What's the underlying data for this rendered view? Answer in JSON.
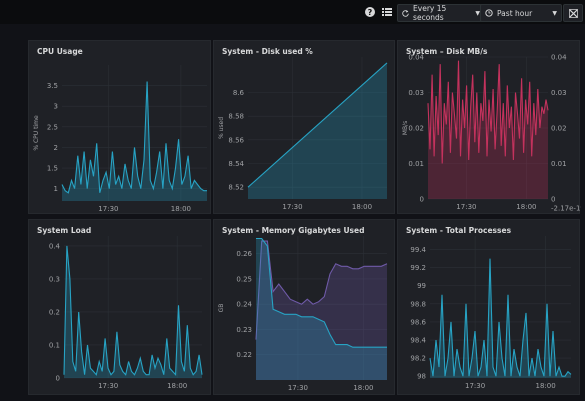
{
  "toolbar": {
    "help_icon": "?",
    "list_icon": "list-icon",
    "refresh_label": "Every 15 seconds",
    "time_range_label": "Past hour",
    "exit_icon": "exit-icon"
  },
  "panels": [
    {
      "title": "CPU Usage",
      "y_label": "% CPU time",
      "chart_data": {
        "type": "area",
        "color": "#27a3c4",
        "ylim": [
          0.7,
          4.0
        ],
        "y_ticks": [
          1,
          1.5,
          2,
          2.5,
          3,
          3.5
        ],
        "y_tick_labels": [
          "1",
          "1.5",
          "2",
          "2.5",
          "3",
          "3.5"
        ],
        "x_ticks": [
          "17:30",
          "18:00"
        ],
        "values": [
          1.1,
          0.95,
          0.9,
          1.2,
          1.0,
          1.8,
          1.1,
          1.9,
          1.0,
          1.7,
          1.3,
          2.1,
          0.9,
          1.2,
          1.4,
          1.0,
          1.9,
          1.1,
          1.3,
          1.0,
          1.6,
          1.2,
          1.0,
          2.0,
          1.3,
          1.0,
          1.7,
          3.6,
          1.2,
          1.0,
          1.4,
          1.9,
          1.0,
          2.1,
          1.2,
          1.0,
          1.5,
          2.2,
          1.1,
          1.3,
          1.8,
          1.0,
          1.2,
          1.1,
          1.0,
          0.95,
          0.95
        ]
      }
    },
    {
      "title": "System - Disk used %",
      "y_label": "% used",
      "chart_data": {
        "type": "area",
        "color": "#27a3c4",
        "ylim": [
          8.51,
          8.63
        ],
        "y_ticks": [
          8.52,
          8.54,
          8.56,
          8.58,
          8.6
        ],
        "y_tick_labels": [
          "8.52",
          "8.54",
          "8.56",
          "8.58",
          "8.6"
        ],
        "x_ticks": [
          "17:30",
          "18:00"
        ],
        "values": [
          8.52,
          8.625
        ]
      }
    },
    {
      "title": "System – Disk MB/s",
      "y_label": "MB/s",
      "right_tick_labels": [
        "0.04",
        "0.03",
        "0.02",
        "0.01",
        "0",
        "-2.17e-19"
      ],
      "chart_data": {
        "type": "area",
        "color": "#c4325d",
        "ylim": [
          0,
          0.04
        ],
        "y_ticks": [
          0,
          0.01,
          0.02,
          0.03,
          0.04
        ],
        "y_tick_labels": [
          "0",
          "0.01",
          "0.02",
          "0.03",
          "0.04"
        ],
        "x_ticks": [
          "17:30",
          "18:00"
        ],
        "values": [
          0.027,
          0.014,
          0.035,
          0.012,
          0.029,
          0.018,
          0.038,
          0.01,
          0.027,
          0.021,
          0.033,
          0.013,
          0.03,
          0.024,
          0.017,
          0.039,
          0.012,
          0.028,
          0.02,
          0.032,
          0.011,
          0.026,
          0.035,
          0.016,
          0.03,
          0.013,
          0.027,
          0.022,
          0.036,
          0.012,
          0.028,
          0.019,
          0.031,
          0.014,
          0.025,
          0.038,
          0.015,
          0.027,
          0.012,
          0.032,
          0.02,
          0.026,
          0.011,
          0.03,
          0.024,
          0.017,
          0.034,
          0.013,
          0.028,
          0.021,
          0.033,
          0.012,
          0.027,
          0.018,
          0.031,
          0.02,
          0.026,
          0.024,
          0.028,
          0.025
        ]
      }
    },
    {
      "title": "System Load",
      "chart_data": {
        "type": "area",
        "color": "#27a3c4",
        "ylim": [
          0,
          0.43
        ],
        "y_ticks": [
          0,
          0.1,
          0.2,
          0.3,
          0.4
        ],
        "y_tick_labels": [
          "0",
          "0.1",
          "0.2",
          "0.3",
          "0.4"
        ],
        "x_ticks": [
          "17:30",
          "18:00"
        ],
        "values": [
          0.01,
          0.4,
          0.3,
          0.05,
          0.02,
          0.2,
          0.08,
          0.01,
          0.1,
          0.03,
          0.02,
          0.01,
          0.05,
          0.02,
          0.12,
          0.03,
          0.01,
          0.02,
          0.14,
          0.04,
          0.02,
          0.01,
          0.05,
          0.02,
          0.01,
          0.03,
          0.06,
          0.02,
          0.01,
          0.01,
          0.07,
          0.03,
          0.06,
          0.04,
          0.01,
          0.12,
          0.03,
          0.02,
          0.01,
          0.22,
          0.05,
          0.02,
          0.16,
          0.03,
          0.01,
          0.02,
          0.07,
          0.01
        ]
      }
    },
    {
      "title": "System - Memory Gigabytes Used",
      "y_label": "GB",
      "chart_data": {
        "type": "area",
        "ylim": [
          0.21,
          0.267
        ],
        "y_ticks": [
          0.22,
          0.23,
          0.24,
          0.25,
          0.26
        ],
        "y_tick_labels": [
          "0.22",
          "0.23",
          "0.24",
          "0.25",
          "0.26"
        ],
        "x_ticks": [
          "17:30",
          "18:00"
        ],
        "series": [
          {
            "color": "#6f5aa8",
            "values": [
              0.226,
              0.265,
              0.265,
              0.245,
              0.248,
              0.245,
              0.242,
              0.241,
              0.24,
              0.242,
              0.24,
              0.241,
              0.243,
              0.252,
              0.256,
              0.255,
              0.255,
              0.254,
              0.254,
              0.255,
              0.255,
              0.255,
              0.255,
              0.256
            ]
          },
          {
            "color": "#27a3c4",
            "values": [
              0.266,
              0.266,
              0.263,
              0.238,
              0.237,
              0.236,
              0.236,
              0.236,
              0.235,
              0.235,
              0.235,
              0.234,
              0.233,
              0.228,
              0.224,
              0.224,
              0.224,
              0.223,
              0.223,
              0.223,
              0.223,
              0.223,
              0.223,
              0.223
            ]
          }
        ]
      }
    },
    {
      "title": "System - Total Processes",
      "chart_data": {
        "type": "area",
        "color": "#27a3c4",
        "ylim": [
          97.98,
          99.55
        ],
        "y_ticks": [
          98,
          98.2,
          98.4,
          98.6,
          98.8,
          99,
          99.2,
          99.4
        ],
        "y_tick_labels": [
          "98",
          "98.2",
          "98.4",
          "98.6",
          "98.8",
          "99",
          "99.2",
          "99.4"
        ],
        "x_ticks": [
          "17:30",
          "18:00"
        ],
        "values": [
          98.2,
          98.0,
          98.4,
          98.1,
          98.9,
          98.0,
          98.2,
          98.6,
          98.0,
          98.3,
          98.1,
          98.0,
          98.8,
          98.0,
          98.2,
          98.5,
          98.0,
          98.1,
          98.4,
          98.0,
          99.3,
          98.1,
          98.0,
          98.6,
          98.2,
          98.0,
          98.9,
          98.0,
          98.3,
          98.1,
          98.0,
          98.4,
          98.7,
          98.0,
          98.2,
          98.0,
          98.3,
          98.1,
          98.0,
          98.8,
          98.0,
          98.5,
          98.0,
          98.1,
          98.0,
          98.0,
          98.05,
          98.02
        ]
      }
    }
  ]
}
